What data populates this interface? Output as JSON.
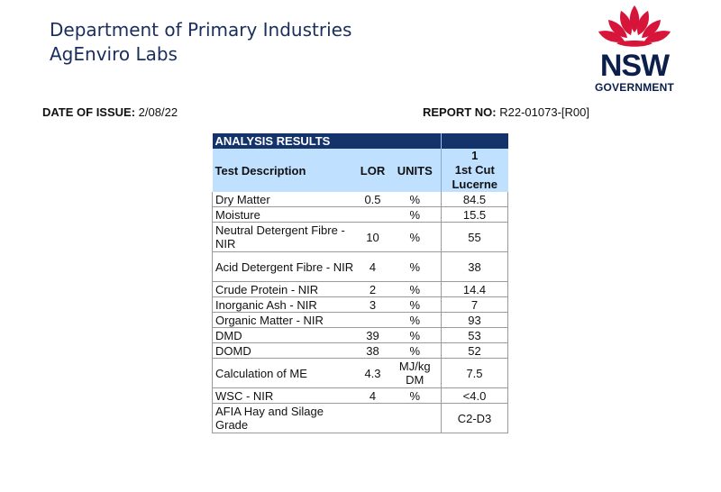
{
  "header": {
    "org_line1": "Department of Primary Industries",
    "org_line2": "AgEnviro Labs",
    "logo_text": "NSW",
    "logo_subtext": "GOVERNMENT"
  },
  "issue": {
    "date_label": "DATE OF ISSUE:",
    "date_value": "2/08/22",
    "report_label": "REPORT NO:",
    "report_value": "R22-01073-[R00]"
  },
  "table": {
    "title": "ANALYSIS RESULTS",
    "columns": {
      "description": "Test Description",
      "lor": "LOR",
      "units": "UNITS",
      "sample_number": "1",
      "sample_line1": "1st Cut",
      "sample_line2": "Lucerne"
    },
    "rows": [
      {
        "description": "Dry Matter",
        "lor": "0.5",
        "units": "%",
        "value": "84.5"
      },
      {
        "description": "Moisture",
        "lor": "",
        "units": "%",
        "value": "15.5"
      },
      {
        "description": "Neutral Detergent Fibre - NIR",
        "lor": "10",
        "units": "%",
        "value": "55"
      },
      {
        "description": "Acid Detergent Fibre - NIR",
        "lor": "4",
        "units": "%",
        "value": "38"
      },
      {
        "description": "Crude Protein - NIR",
        "lor": "2",
        "units": "%",
        "value": "14.4"
      },
      {
        "description": "Inorganic Ash - NIR",
        "lor": "3",
        "units": "%",
        "value": "7"
      },
      {
        "description": "Organic Matter - NIR",
        "lor": "",
        "units": "%",
        "value": "93"
      },
      {
        "description": "DMD",
        "lor": "39",
        "units": "%",
        "value": "53"
      },
      {
        "description": "DOMD",
        "lor": "38",
        "units": "%",
        "value": "52"
      },
      {
        "description": "Calculation of ME",
        "lor": "4.3",
        "units": "MJ/kg DM",
        "value": "7.5"
      },
      {
        "description": "WSC - NIR",
        "lor": "4",
        "units": "%",
        "value": "<4.0"
      },
      {
        "description": "AFIA Hay and Silage Grade",
        "lor": "",
        "units": "",
        "value": "C2-D3"
      }
    ]
  },
  "colors": {
    "org_text": "#1a2e5c",
    "table_title_bg": "#14336b",
    "header_bg": "#bfe0ff",
    "waratah_red": "#d7153a",
    "nsw_navy": "#0b1f4a"
  },
  "icons": {
    "logo": "waratah-flower-icon"
  }
}
